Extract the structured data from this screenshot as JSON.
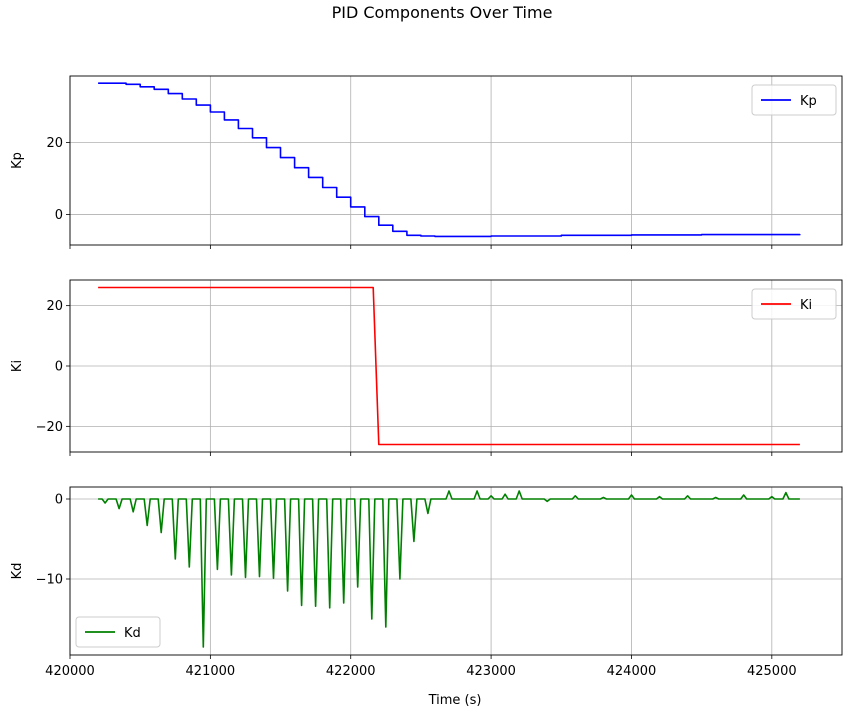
{
  "chart_data": {
    "type": "line",
    "title": "PID Components Over Time",
    "xlabel": "Time (s)",
    "xlim": [
      420000,
      425500
    ],
    "xticks": [
      "420000",
      "421000",
      "422000",
      "423000",
      "424000",
      "425000"
    ],
    "grid": true,
    "panels": [
      {
        "ylabel": "Kp",
        "ylim": [
          -8.5,
          38.5
        ],
        "yticks": [
          0,
          20
        ],
        "ytick_labels": [
          "0",
          "20"
        ],
        "legend": "upper right",
        "series": [
          {
            "name": "Kp",
            "color": "#0000ff",
            "step": true,
            "x": [
              420200,
              420400,
              420500,
              420600,
              420700,
              420800,
              420900,
              421000,
              421100,
              421200,
              421300,
              421400,
              421500,
              421600,
              421700,
              421800,
              421900,
              422000,
              422100,
              422200,
              422300,
              422400,
              422500,
              422600,
              423000,
              423500,
              424000,
              424500,
              425200
            ],
            "y": [
              36.5,
              36.2,
              35.5,
              34.8,
              33.6,
              32.1,
              30.4,
              28.5,
              26.3,
              23.9,
              21.3,
              18.6,
              15.8,
              13.0,
              10.3,
              7.5,
              4.8,
              2.1,
              -0.6,
              -3.0,
              -4.7,
              -5.8,
              -6.0,
              -6.1,
              -6.0,
              -5.8,
              -5.7,
              -5.6,
              -5.5
            ]
          }
        ]
      },
      {
        "ylabel": "Ki",
        "ylim": [
          -28.5,
          28.5
        ],
        "yticks": [
          -20,
          0,
          20
        ],
        "ytick_labels": [
          "−20",
          "0",
          "20"
        ],
        "legend": "upper right",
        "series": [
          {
            "name": "Ki",
            "color": "#ff0000",
            "x": [
              420200,
              422160,
              422200,
              425200
            ],
            "y": [
              26,
              26,
              -26,
              -26
            ]
          }
        ]
      },
      {
        "ylabel": "Kd",
        "ylim": [
          -19.5,
          1.5
        ],
        "yticks": [
          -10,
          0
        ],
        "ytick_labels": [
          "−10",
          "0"
        ],
        "legend": "lower left",
        "series": [
          {
            "name": "Kd",
            "color": "#008000",
            "baseline": 0,
            "spikes": [
              [
                420250,
                -0.5
              ],
              [
                420350,
                -1.2
              ],
              [
                420450,
                -1.6
              ],
              [
                420550,
                -3.3
              ],
              [
                420650,
                -4.2
              ],
              [
                420750,
                -7.5
              ],
              [
                420850,
                -8.5
              ],
              [
                420950,
                -18.5
              ],
              [
                421050,
                -8.8
              ],
              [
                421150,
                -9.5
              ],
              [
                421250,
                -9.8
              ],
              [
                421350,
                -9.7
              ],
              [
                421450,
                -9.9
              ],
              [
                421550,
                -11.5
              ],
              [
                421650,
                -13.3
              ],
              [
                421750,
                -13.4
              ],
              [
                421850,
                -13.6
              ],
              [
                421950,
                -13.0
              ],
              [
                422050,
                -11.0
              ],
              [
                422150,
                -15.0
              ],
              [
                422250,
                -16.0
              ],
              [
                422350,
                -10.0
              ],
              [
                422450,
                -5.3
              ],
              [
                422550,
                -1.8
              ],
              [
                422700,
                1.0
              ],
              [
                422900,
                1.0
              ],
              [
                423000,
                0.4
              ],
              [
                423100,
                0.6
              ],
              [
                423200,
                1.0
              ],
              [
                423400,
                -0.3
              ],
              [
                423600,
                0.4
              ],
              [
                423800,
                0.2
              ],
              [
                424000,
                0.5
              ],
              [
                424200,
                0.3
              ],
              [
                424400,
                0.4
              ],
              [
                424600,
                0.2
              ],
              [
                424800,
                0.5
              ],
              [
                425000,
                0.3
              ],
              [
                425100,
                0.8
              ]
            ]
          }
        ]
      }
    ]
  }
}
